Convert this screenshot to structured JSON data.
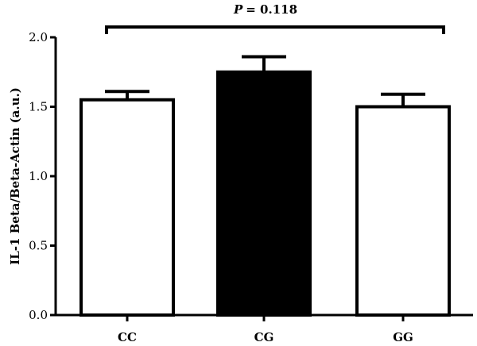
{
  "chart_data": {
    "type": "bar",
    "title": "",
    "xlabel": "",
    "ylabel": "IL-1 Beta/Beta-Actin (a.u.)",
    "categories": [
      "CC",
      "CG",
      "GG"
    ],
    "values": [
      1.55,
      1.75,
      1.5
    ],
    "errors": [
      0.06,
      0.11,
      0.09
    ],
    "bar_fills": [
      "#ffffff",
      "#000000",
      "#ffffff"
    ],
    "ylim": [
      0.0,
      2.0
    ],
    "yticks": [
      "0.0",
      "0.5",
      "1.0",
      "1.5",
      "2.0"
    ],
    "grid": false,
    "annotation": {
      "p_symbol": "P",
      "p_text": "= 0.118",
      "from_category": "CC",
      "to_category": "GG"
    }
  }
}
